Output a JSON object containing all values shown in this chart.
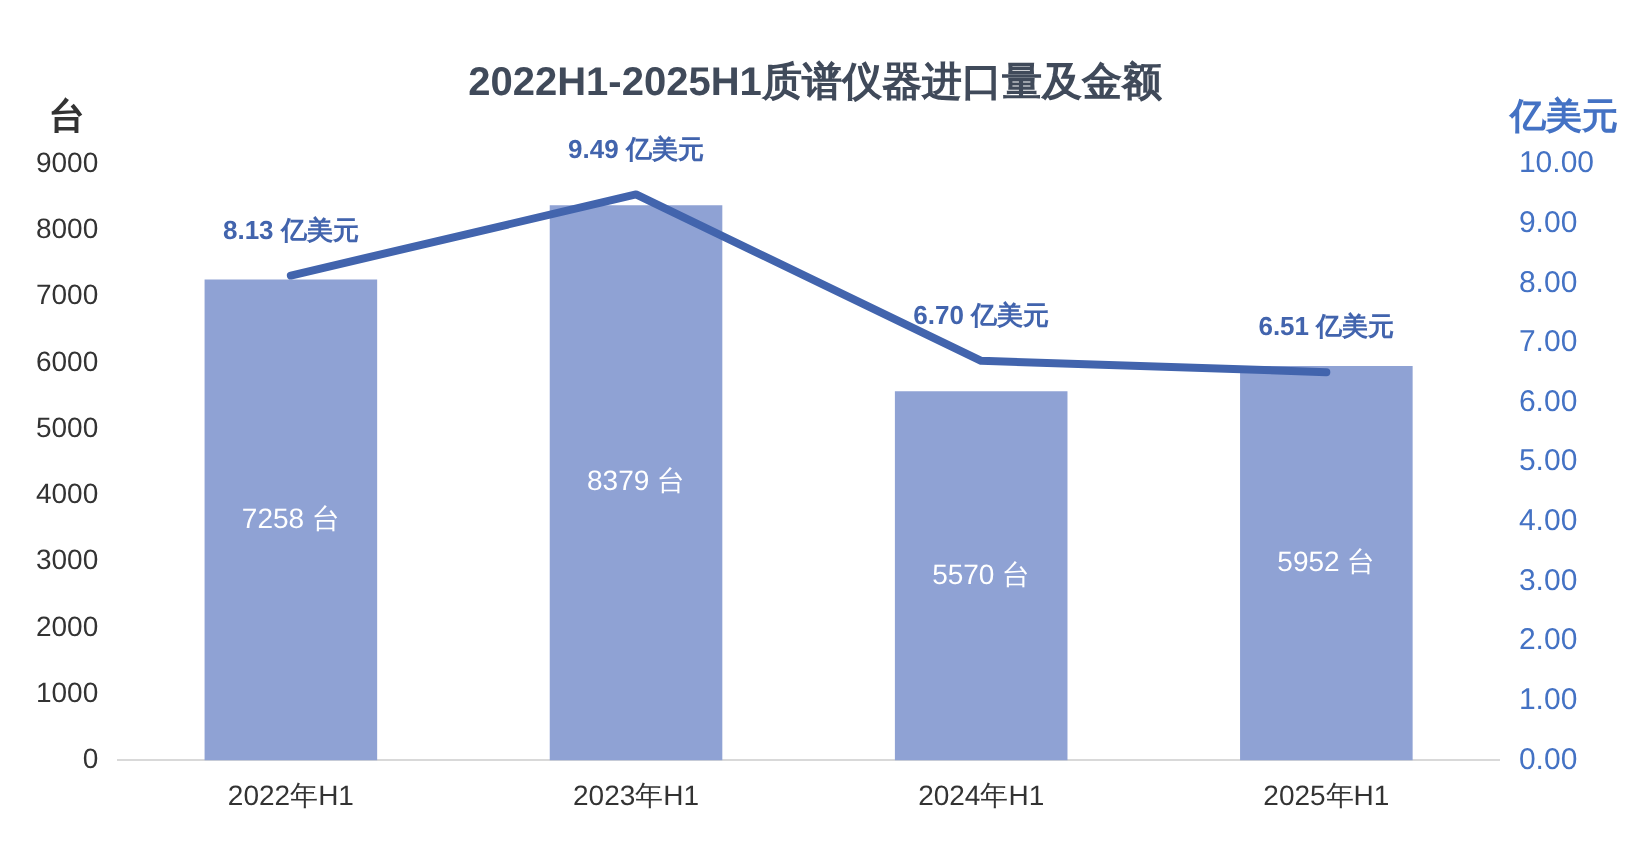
{
  "chart_data": {
    "type": "bar",
    "title": "2022H1-2025H1质谱仪器进口量及金额",
    "ylabel": "台",
    "y2label": "亿美元",
    "categories": [
      "2022年H1",
      "2023年H1",
      "2024年H1",
      "2025年H1"
    ],
    "ylim": [
      0,
      9000
    ],
    "yticks": [
      0,
      1000,
      2000,
      3000,
      4000,
      5000,
      6000,
      7000,
      8000,
      9000
    ],
    "y2lim": [
      0,
      10
    ],
    "y2ticks": [
      {
        "value": 0,
        "label": "0.00"
      },
      {
        "value": 1,
        "label": "1.00"
      },
      {
        "value": 2,
        "label": "2.00"
      },
      {
        "value": 3,
        "label": "3.00"
      },
      {
        "value": 4,
        "label": "4.00"
      },
      {
        "value": 5,
        "label": "5.00"
      },
      {
        "value": 6,
        "label": "6.00"
      },
      {
        "value": 7,
        "label": "7.00"
      },
      {
        "value": 8,
        "label": "8.00"
      },
      {
        "value": 9,
        "label": "9.00"
      },
      {
        "value": 10,
        "label": "10.00"
      }
    ],
    "series": [
      {
        "color": "#8fa2d4",
        "values": [
          7258,
          8379,
          5570,
          5952
        ],
        "value_labels": [
          "7258 台",
          "8379 台",
          "5570 台",
          "5952 台"
        ]
      },
      {
        "type": "line",
        "axis": "y2",
        "color": "#4264ad",
        "values": [
          8.13,
          9.49,
          6.7,
          6.51
        ],
        "value_labels": [
          "8.13 亿美元",
          "9.49 亿美元",
          "6.70 亿美元",
          "6.51 亿美元"
        ]
      }
    ],
    "grid": false,
    "legend": false
  }
}
